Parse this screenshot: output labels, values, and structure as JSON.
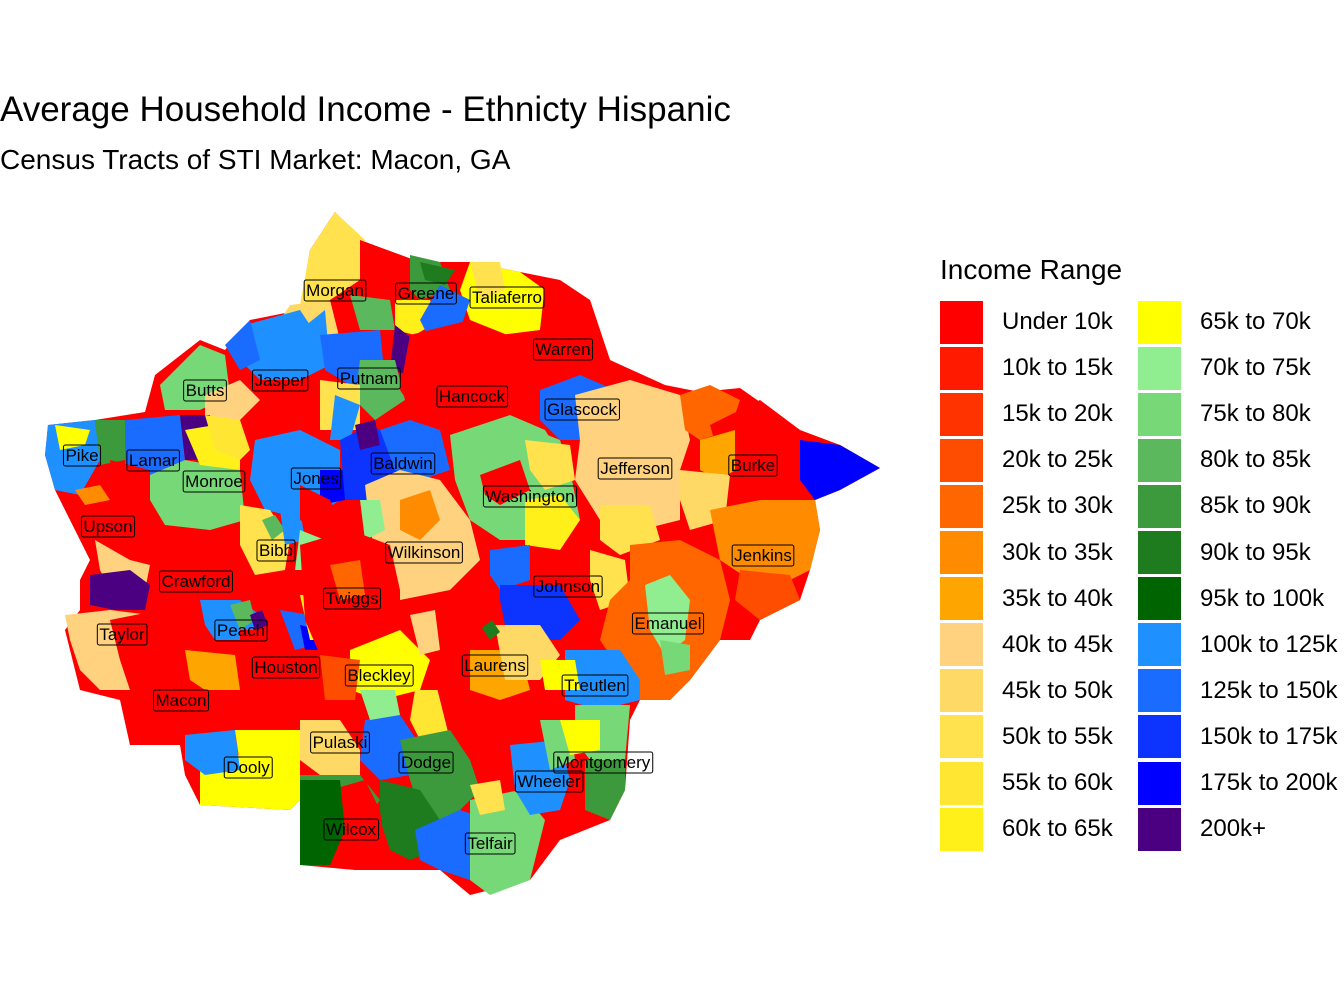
{
  "title": "Average Household Income - Ethnicty Hispanic",
  "subtitle": "Census Tracts of STI Market: Macon, GA",
  "legend": {
    "title": "Income Range",
    "items": [
      {
        "label": "Under 10k",
        "color": "#FF0000"
      },
      {
        "label": "10k to 15k",
        "color": "#FF1A00"
      },
      {
        "label": "15k to 20k",
        "color": "#FF3300"
      },
      {
        "label": "20k to 25k",
        "color": "#FF4D00"
      },
      {
        "label": "25k to 30k",
        "color": "#FF6600"
      },
      {
        "label": "30k to 35k",
        "color": "#FF8C00"
      },
      {
        "label": "35k to 40k",
        "color": "#FFA500"
      },
      {
        "label": "40k to 45k",
        "color": "#FFD27F"
      },
      {
        "label": "45k to 50k",
        "color": "#FFD966"
      },
      {
        "label": "50k to 55k",
        "color": "#FFE24D"
      },
      {
        "label": "55k to 60k",
        "color": "#FFE633"
      },
      {
        "label": "60k to 65k",
        "color": "#FFF01A"
      },
      {
        "label": "65k to 70k",
        "color": "#FFFF00"
      },
      {
        "label": "70k to 75k",
        "color": "#90EE90"
      },
      {
        "label": "75k to 80k",
        "color": "#77D877"
      },
      {
        "label": "80k to 85k",
        "color": "#5CB85C"
      },
      {
        "label": "85k to 90k",
        "color": "#3C9A3C"
      },
      {
        "label": "90k to 95k",
        "color": "#1E7B1E"
      },
      {
        "label": "95k to 100k",
        "color": "#006400"
      },
      {
        "label": "100k to 125k",
        "color": "#1E90FF"
      },
      {
        "label": "125k to 150k",
        "color": "#1A6BFF"
      },
      {
        "label": "150k to 175k",
        "color": "#0D33FF"
      },
      {
        "label": "175k to 200k",
        "color": "#0000FF"
      },
      {
        "label": "200k+",
        "color": "#4B0082"
      }
    ]
  },
  "counties": [
    "Morgan",
    "Greene",
    "Taliaferro",
    "Warren",
    "Butts",
    "Jasper",
    "Putnam",
    "Hancock",
    "Glascock",
    "Pike",
    "Lamar",
    "Monroe",
    "Jones",
    "Baldwin",
    "Jefferson",
    "Burke",
    "Washington",
    "Upson",
    "Bibb",
    "Wilkinson",
    "Jenkins",
    "Crawford",
    "Twiggs",
    "Johnson",
    "Taylor",
    "Peach",
    "Emanuel",
    "Houston",
    "Bleckley",
    "Laurens",
    "Treutlen",
    "Macon",
    "Pulaski",
    "Dooly",
    "Dodge",
    "Montgomery",
    "Wheeler",
    "Wilcox",
    "Telfair"
  ]
}
